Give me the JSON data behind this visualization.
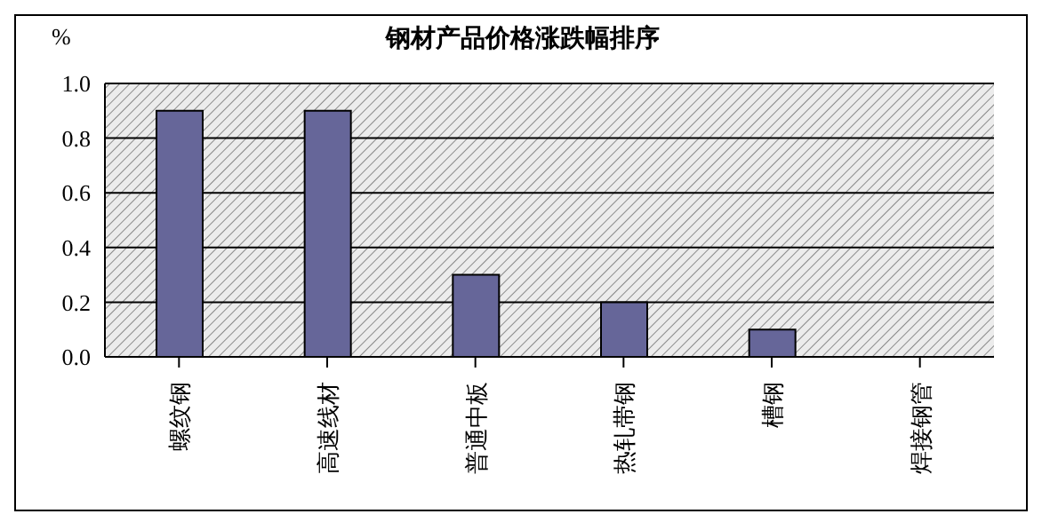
{
  "chart_data": {
    "type": "bar",
    "title": "钢材产品价格涨跌幅排序",
    "ylabel": "%",
    "categories": [
      "螺纹钢",
      "高速线材",
      "普通中板",
      "热轧带钢",
      "槽钢",
      "焊接钢管"
    ],
    "values": [
      0.9,
      0.9,
      0.3,
      0.2,
      0.1,
      0
    ],
    "color": "#666699",
    "ylim": [
      0,
      1
    ],
    "yticks": [
      {
        "value": 0,
        "label": "0.0"
      },
      {
        "value": 0.2,
        "label": "0.2"
      },
      {
        "value": 0.4,
        "label": "0.4"
      },
      {
        "value": 0.6,
        "label": "0.6"
      },
      {
        "value": 0.8,
        "label": "0.8"
      },
      {
        "value": 1,
        "label": "1.0"
      }
    ],
    "grid": "y",
    "legend": false
  }
}
